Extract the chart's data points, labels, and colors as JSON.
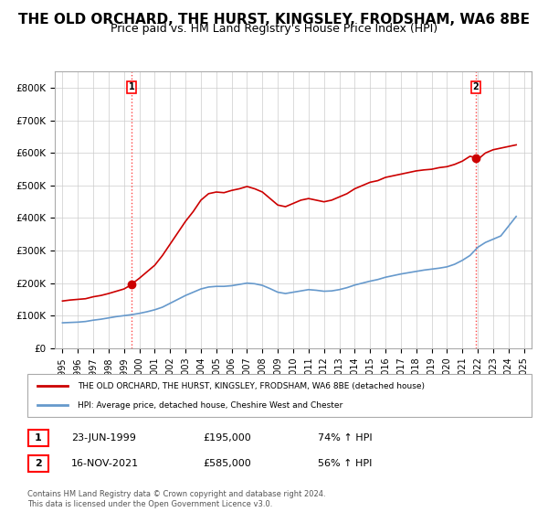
{
  "title": "THE OLD ORCHARD, THE HURST, KINGSLEY, FRODSHAM, WA6 8BE",
  "subtitle": "Price paid vs. HM Land Registry's House Price Index (HPI)",
  "title_fontsize": 11,
  "subtitle_fontsize": 9,
  "background_color": "#ffffff",
  "plot_bg_color": "#ffffff",
  "grid_color": "#cccccc",
  "red_line_color": "#cc0000",
  "blue_line_color": "#6699cc",
  "sale1_x": 1999.48,
  "sale1_y": 195000,
  "sale2_x": 2021.88,
  "sale2_y": 585000,
  "vline_color": "#ff4444",
  "vline_style": ":",
  "marker1_color": "#cc0000",
  "marker2_color": "#cc0000",
  "ylim": [
    0,
    850000
  ],
  "xlim_left": 1994.5,
  "xlim_right": 2025.5,
  "legend_red_label": "THE OLD ORCHARD, THE HURST, KINGSLEY, FRODSHAM, WA6 8BE (detached house)",
  "legend_blue_label": "HPI: Average price, detached house, Cheshire West and Chester",
  "table_row1": [
    "1",
    "23-JUN-1999",
    "£195,000",
    "74% ↑ HPI"
  ],
  "table_row2": [
    "2",
    "16-NOV-2021",
    "£585,000",
    "56% ↑ HPI"
  ],
  "footer": "Contains HM Land Registry data © Crown copyright and database right 2024.\nThis data is licensed under the Open Government Licence v3.0.",
  "red_line_data_x": [
    1995.0,
    1995.5,
    1996.0,
    1996.5,
    1997.0,
    1997.5,
    1998.0,
    1998.5,
    1999.0,
    1999.48,
    1999.5,
    2000.0,
    2000.5,
    2001.0,
    2001.5,
    2002.0,
    2002.5,
    2003.0,
    2003.5,
    2004.0,
    2004.5,
    2005.0,
    2005.5,
    2006.0,
    2006.5,
    2007.0,
    2007.5,
    2008.0,
    2008.5,
    2009.0,
    2009.5,
    2010.0,
    2010.5,
    2011.0,
    2011.5,
    2012.0,
    2012.5,
    2013.0,
    2013.5,
    2014.0,
    2014.5,
    2015.0,
    2015.5,
    2016.0,
    2016.5,
    2017.0,
    2017.5,
    2018.0,
    2018.5,
    2019.0,
    2019.5,
    2020.0,
    2020.5,
    2021.0,
    2021.5,
    2021.88,
    2022.0,
    2022.5,
    2023.0,
    2023.5,
    2024.0,
    2024.5
  ],
  "red_line_data_y": [
    145000,
    148000,
    150000,
    152000,
    158000,
    162000,
    168000,
    175000,
    182000,
    195000,
    197000,
    215000,
    235000,
    255000,
    285000,
    320000,
    355000,
    390000,
    420000,
    455000,
    475000,
    480000,
    478000,
    485000,
    490000,
    497000,
    490000,
    480000,
    460000,
    440000,
    435000,
    445000,
    455000,
    460000,
    455000,
    450000,
    455000,
    465000,
    475000,
    490000,
    500000,
    510000,
    515000,
    525000,
    530000,
    535000,
    540000,
    545000,
    548000,
    550000,
    555000,
    558000,
    565000,
    575000,
    590000,
    585000,
    580000,
    600000,
    610000,
    615000,
    620000,
    625000
  ],
  "blue_line_data_x": [
    1995.0,
    1995.5,
    1996.0,
    1996.5,
    1997.0,
    1997.5,
    1998.0,
    1998.5,
    1999.0,
    1999.5,
    2000.0,
    2000.5,
    2001.0,
    2001.5,
    2002.0,
    2002.5,
    2003.0,
    2003.5,
    2004.0,
    2004.5,
    2005.0,
    2005.5,
    2006.0,
    2006.5,
    2007.0,
    2007.5,
    2008.0,
    2008.5,
    2009.0,
    2009.5,
    2010.0,
    2010.5,
    2011.0,
    2011.5,
    2012.0,
    2012.5,
    2013.0,
    2013.5,
    2014.0,
    2014.5,
    2015.0,
    2015.5,
    2016.0,
    2016.5,
    2017.0,
    2017.5,
    2018.0,
    2018.5,
    2019.0,
    2019.5,
    2020.0,
    2020.5,
    2021.0,
    2021.5,
    2022.0,
    2022.5,
    2023.0,
    2023.5,
    2024.0,
    2024.5
  ],
  "blue_line_data_y": [
    78000,
    79000,
    80000,
    82000,
    86000,
    89000,
    93000,
    97000,
    100000,
    103000,
    107000,
    112000,
    118000,
    126000,
    138000,
    150000,
    162000,
    172000,
    182000,
    188000,
    190000,
    190000,
    192000,
    196000,
    200000,
    198000,
    193000,
    183000,
    172000,
    168000,
    172000,
    176000,
    180000,
    178000,
    175000,
    176000,
    180000,
    186000,
    194000,
    200000,
    206000,
    211000,
    218000,
    223000,
    228000,
    232000,
    236000,
    240000,
    243000,
    246000,
    250000,
    258000,
    270000,
    285000,
    310000,
    325000,
    335000,
    345000,
    375000,
    405000
  ],
  "yticks": [
    0,
    100000,
    200000,
    300000,
    400000,
    500000,
    600000,
    700000,
    800000
  ],
  "ytick_labels": [
    "£0",
    "£100K",
    "£200K",
    "£300K",
    "£400K",
    "£500K",
    "£600K",
    "£700K",
    "£800K"
  ],
  "xticks": [
    1995,
    1996,
    1997,
    1998,
    1999,
    2000,
    2001,
    2002,
    2003,
    2004,
    2005,
    2006,
    2007,
    2008,
    2009,
    2010,
    2011,
    2012,
    2013,
    2014,
    2015,
    2016,
    2017,
    2018,
    2019,
    2020,
    2021,
    2022,
    2023,
    2024,
    2025
  ]
}
